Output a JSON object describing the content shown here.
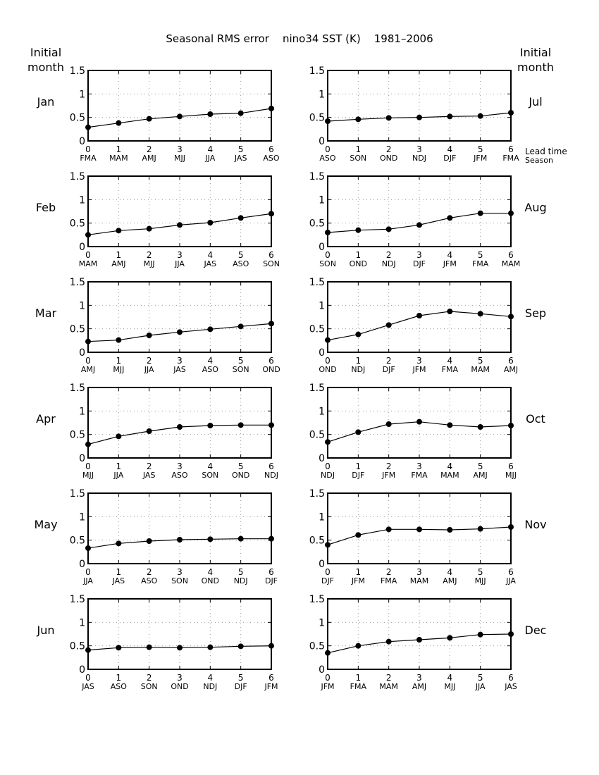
{
  "title": "Seasonal RMS error    nino34 SST (K)    1981–2006",
  "left_header": [
    "Initial",
    "month"
  ],
  "right_header": [
    "Initial",
    "month"
  ],
  "lead_label": "Lead time",
  "season_label": "Season",
  "chart_data": {
    "type": "line",
    "ylim": [
      0,
      1.5
    ],
    "yticks": [
      "0",
      "0.5",
      "1",
      "1.5"
    ],
    "xlim": [
      0,
      6
    ],
    "x": [
      "0",
      "1",
      "2",
      "3",
      "4",
      "5",
      "6"
    ],
    "grid": true,
    "panels": [
      {
        "month": "Jan",
        "seasons": [
          "FMA",
          "MAM",
          "AMJ",
          "MJJ",
          "JJA",
          "JAS",
          "ASO"
        ],
        "values": [
          0.29,
          0.38,
          0.47,
          0.52,
          0.57,
          0.59,
          0.69
        ]
      },
      {
        "month": "Jul",
        "seasons": [
          "ASO",
          "SON",
          "OND",
          "NDJ",
          "DJF",
          "JFM",
          "FMA"
        ],
        "values": [
          0.42,
          0.46,
          0.49,
          0.5,
          0.52,
          0.53,
          0.6
        ]
      },
      {
        "month": "Feb",
        "seasons": [
          "MAM",
          "AMJ",
          "MJJ",
          "JJA",
          "JAS",
          "ASO",
          "SON"
        ],
        "values": [
          0.25,
          0.34,
          0.38,
          0.46,
          0.51,
          0.61,
          0.7
        ]
      },
      {
        "month": "Aug",
        "seasons": [
          "SON",
          "OND",
          "NDJ",
          "DJF",
          "JFM",
          "FMA",
          "MAM"
        ],
        "values": [
          0.3,
          0.35,
          0.37,
          0.46,
          0.61,
          0.71,
          0.71
        ]
      },
      {
        "month": "Mar",
        "seasons": [
          "AMJ",
          "MJJ",
          "JJA",
          "JAS",
          "ASO",
          "SON",
          "OND"
        ],
        "values": [
          0.23,
          0.26,
          0.36,
          0.43,
          0.49,
          0.55,
          0.61
        ]
      },
      {
        "month": "Sep",
        "seasons": [
          "OND",
          "NDJ",
          "DJF",
          "JFM",
          "FMA",
          "MAM",
          "AMJ"
        ],
        "values": [
          0.26,
          0.38,
          0.58,
          0.78,
          0.87,
          0.82,
          0.76
        ]
      },
      {
        "month": "Apr",
        "seasons": [
          "MJJ",
          "JJA",
          "JAS",
          "ASO",
          "SON",
          "OND",
          "NDJ"
        ],
        "values": [
          0.29,
          0.46,
          0.57,
          0.66,
          0.69,
          0.7,
          0.7
        ]
      },
      {
        "month": "Oct",
        "seasons": [
          "NDJ",
          "DJF",
          "JFM",
          "FMA",
          "MAM",
          "AMJ",
          "MJJ"
        ],
        "values": [
          0.34,
          0.55,
          0.72,
          0.77,
          0.7,
          0.66,
          0.69
        ]
      },
      {
        "month": "May",
        "seasons": [
          "JJA",
          "JAS",
          "ASO",
          "SON",
          "OND",
          "NDJ",
          "DJF"
        ],
        "values": [
          0.33,
          0.43,
          0.48,
          0.51,
          0.52,
          0.53,
          0.53
        ]
      },
      {
        "month": "Nov",
        "seasons": [
          "DJF",
          "JFM",
          "FMA",
          "MAM",
          "AMJ",
          "MJJ",
          "JJA"
        ],
        "values": [
          0.4,
          0.61,
          0.73,
          0.73,
          0.72,
          0.74,
          0.78
        ]
      },
      {
        "month": "Jun",
        "seasons": [
          "JAS",
          "ASO",
          "SON",
          "OND",
          "NDJ",
          "DJF",
          "JFM"
        ],
        "values": [
          0.41,
          0.46,
          0.47,
          0.46,
          0.47,
          0.49,
          0.5
        ]
      },
      {
        "month": "Dec",
        "seasons": [
          "JFM",
          "FMA",
          "MAM",
          "AMJ",
          "MJJ",
          "JJA",
          "JAS"
        ],
        "values": [
          0.35,
          0.5,
          0.59,
          0.63,
          0.67,
          0.74,
          0.75
        ]
      }
    ]
  }
}
